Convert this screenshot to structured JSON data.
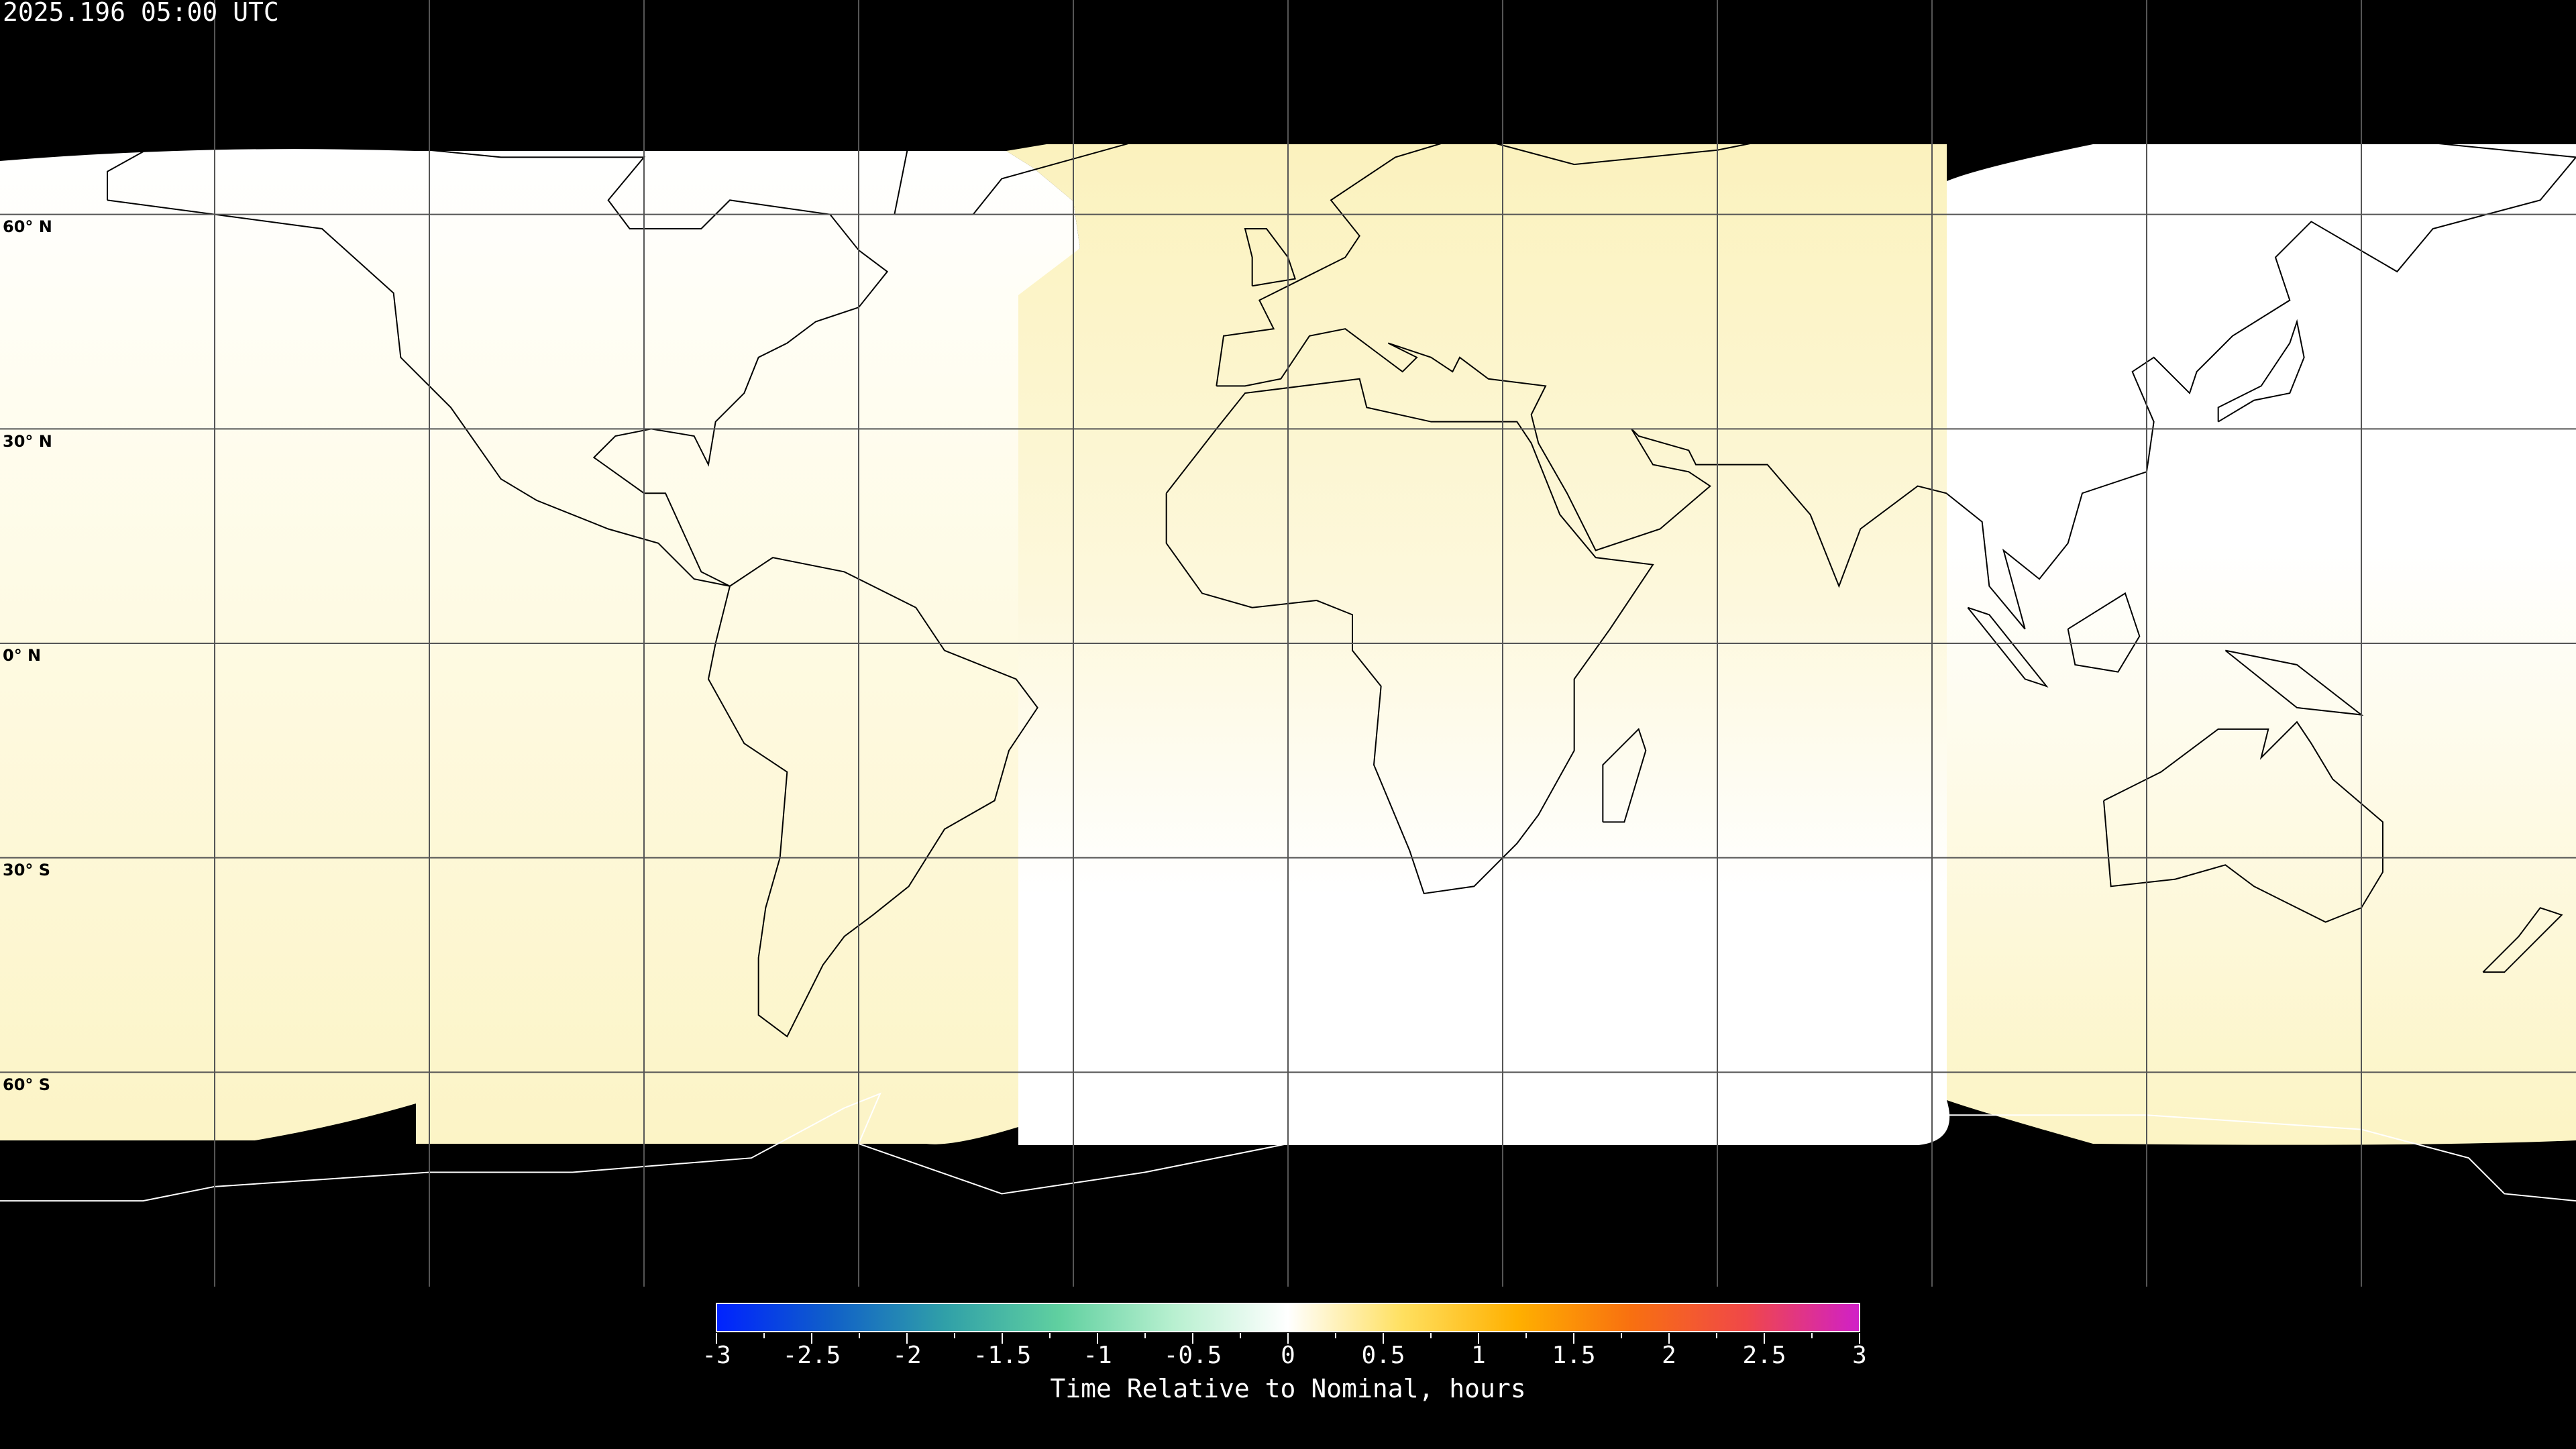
{
  "title": "2025.196 05:00 UTC",
  "projection": "equirectangular",
  "lat_labels": [
    "60° N",
    "30° N",
    "0° N",
    "30° S",
    "60° S"
  ],
  "grid": {
    "lon_step_deg": 30,
    "lat_step_deg": 30,
    "color": "#000000"
  },
  "coverage_colors": {
    "nominal": "#ffffff",
    "slightly_late": "#fcf4c4"
  },
  "colorbar": {
    "label": "Time Relative to Nominal, hours",
    "min": -3,
    "max": 3,
    "ticks": [
      "-3",
      "-2.5",
      "-2",
      "-1.5",
      "-1",
      "-0.5",
      "0",
      "0.5",
      "1",
      "1.5",
      "2",
      "2.5",
      "3"
    ],
    "colors": [
      "#0022ff",
      "#1060c8",
      "#30a0a8",
      "#60d0a0",
      "#b8f0d0",
      "#ffffff",
      "#ffe060",
      "#ffb000",
      "#f87010",
      "#f04848",
      "#d020c8"
    ]
  }
}
